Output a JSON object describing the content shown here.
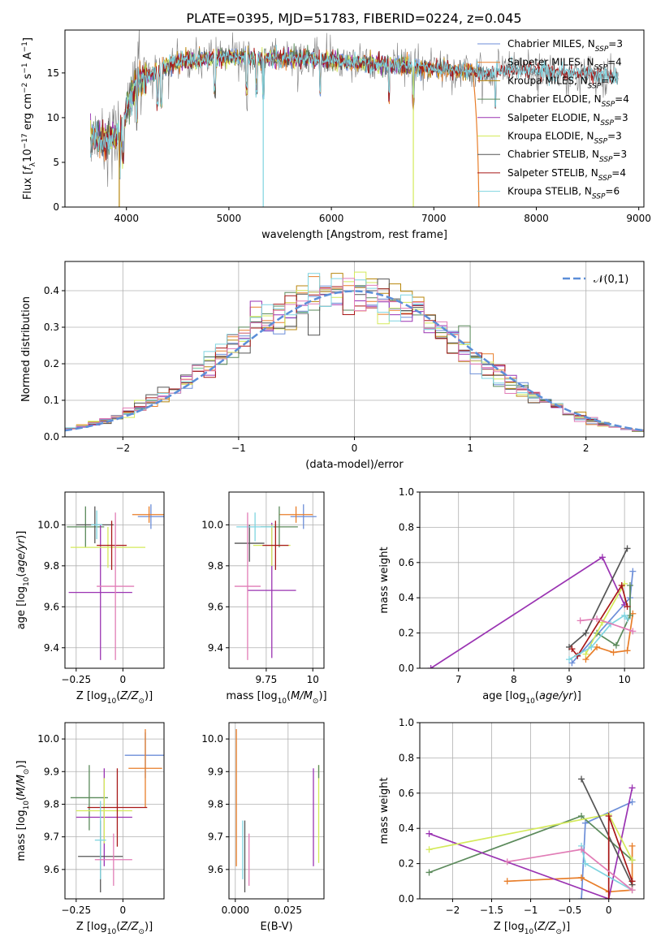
{
  "figure": {
    "title": "PLATE=0395, MJD=51783, FIBERID=0224, z=0.045"
  },
  "colors": {
    "Chabrier MILES": "#6c8ed8",
    "Salpeter MILES": "#e87e2a",
    "Kroupa MILES": "#b8860b",
    "Chabrier ELODIE": "#5b8a5b",
    "Salpeter ELODIE": "#9a33b2",
    "Kroupa ELODIE": "#d4ea5a",
    "Chabrier STELIB": "#555555",
    "Salpeter STELIB": "#a81818",
    "Kroupa STELIB": "#7fd4e0",
    "pink": "#e17cb6",
    "gaussian": "#5b8ed8",
    "data": "#7f7f7f",
    "grid": "#b0b0b0"
  },
  "chart_data": [
    {
      "id": "spectrum",
      "type": "line",
      "xlabel": "wavelength [Angstrom, rest frame]",
      "ylabel": "Flux [f_λ10^-17 erg cm^-2 s^-1 A^-1]",
      "xlim": [
        3400,
        9050
      ],
      "ylim": [
        0,
        19.8
      ],
      "xticks": [
        4000,
        5000,
        6000,
        7000,
        8000,
        9000
      ],
      "yticks": [
        0,
        5,
        10,
        15
      ],
      "grid": false,
      "legend_position": "right",
      "continuum": {
        "x": [
          3650,
          3800,
          3950,
          4000,
          4100,
          4300,
          4500,
          4700,
          5000,
          5300,
          5600,
          6000,
          6400,
          6800,
          7200,
          7500,
          7800,
          8200,
          8600,
          8800
        ],
        "y": [
          8,
          7.5,
          8.5,
          11,
          14,
          15.2,
          16.2,
          16.5,
          16.8,
          16.6,
          16.7,
          16.4,
          16.0,
          15.7,
          15.3,
          15.0,
          15.4,
          15.1,
          14.8,
          14.5
        ]
      },
      "models": [
        {
          "name": "Chabrier MILES",
          "nssp": "3",
          "xmax": 7450
        },
        {
          "name": "Salpeter MILES",
          "nssp": "4",
          "xmax": 7450
        },
        {
          "name": "Kroupa MILES",
          "nssp": "7",
          "xmax": 7450
        },
        {
          "name": "Chabrier ELODIE",
          "nssp": "4",
          "xmax": 6800
        },
        {
          "name": "Salpeter ELODIE",
          "nssp": "3",
          "xmax": 6800
        },
        {
          "name": "Kroupa ELODIE",
          "nssp": "3",
          "xmax": 6800
        },
        {
          "name": "Chabrier STELIB",
          "nssp": "3",
          "xmax": 8800
        },
        {
          "name": "Salpeter STELIB",
          "nssp": "4",
          "xmax": 8800
        },
        {
          "name": "Kroupa STELIB",
          "nssp": "6",
          "xmax": 8800
        }
      ]
    },
    {
      "id": "residuals",
      "type": "histogram",
      "xlabel": "(data-model)/error",
      "ylabel": "Normed distribution",
      "xlim": [
        -2.5,
        2.5
      ],
      "ylim": [
        0,
        0.48
      ],
      "xticks": [
        -2,
        -1,
        0,
        1,
        2
      ],
      "yticks": [
        0.0,
        0.1,
        0.2,
        0.3,
        0.4
      ],
      "grid": true,
      "legend": "𝒩(0,1)",
      "legend_position": "top-right",
      "bin_width": 0.1
    },
    {
      "id": "age_vs_Z",
      "type": "errorbar",
      "xlabel": "Z [log10(Z/Z⊙)]",
      "ylabel": "age  [log10(age/yr)]",
      "xlim": [
        -0.31,
        0.22
      ],
      "ylim": [
        9.3,
        10.16
      ],
      "xticks": [
        -0.25,
        0.0
      ],
      "yticks": [
        9.4,
        9.6,
        9.8,
        10.0
      ],
      "grid": true,
      "points": [
        {
          "c": "Chabrier MILES",
          "x": 0.15,
          "y": 10.04,
          "dx": 0.07,
          "dy": 0.06
        },
        {
          "c": "Salpeter MILES",
          "x": 0.14,
          "y": 10.05,
          "dx": 0.09,
          "dy": 0.04
        },
        {
          "c": "Chabrier ELODIE",
          "x": -0.2,
          "y": 9.99,
          "dx": 0.1,
          "dy": 0.1
        },
        {
          "c": "Salpeter ELODIE",
          "x": -0.12,
          "y": 9.67,
          "dx": 0.17,
          "dy": 0.33
        },
        {
          "c": "Kroupa ELODIE",
          "x": -0.08,
          "y": 9.89,
          "dx": 0.2,
          "dy": 0.1
        },
        {
          "c": "Chabrier STELIB",
          "x": -0.15,
          "y": 10.0,
          "dx": 0.1,
          "dy": 0.09
        },
        {
          "c": "Salpeter STELIB",
          "x": -0.06,
          "y": 9.9,
          "dx": 0.08,
          "dy": 0.12
        },
        {
          "c": "Kroupa STELIB",
          "x": -0.14,
          "y": 10.0,
          "dx": 0.03,
          "dy": 0.07
        },
        {
          "c": "pink",
          "x": -0.04,
          "y": 9.7,
          "dx": 0.1,
          "dy": 0.36
        }
      ]
    },
    {
      "id": "age_vs_mass",
      "type": "errorbar",
      "xlabel": "mass [log10(M/M⊙)]",
      "ylabel": "",
      "xlim": [
        9.55,
        10.06
      ],
      "ylim": [
        9.3,
        10.16
      ],
      "xticks": [
        9.75,
        10.0
      ],
      "yticks": [
        9.4,
        9.6,
        9.8,
        10.0
      ],
      "grid": true,
      "points": [
        {
          "c": "Chabrier MILES",
          "x": 9.95,
          "y": 10.04,
          "dx": 0.07,
          "dy": 0.06
        },
        {
          "c": "Salpeter MILES",
          "x": 9.91,
          "y": 10.05,
          "dx": 0.09,
          "dy": 0.04
        },
        {
          "c": "Chabrier ELODIE",
          "x": 9.82,
          "y": 9.99,
          "dx": 0.1,
          "dy": 0.1
        },
        {
          "c": "Salpeter ELODIE",
          "x": 9.78,
          "y": 9.68,
          "dx": 0.13,
          "dy": 0.33
        },
        {
          "c": "Kroupa ELODIE",
          "x": 9.78,
          "y": 9.9,
          "dx": 0.1,
          "dy": 0.1
        },
        {
          "c": "Chabrier STELIB",
          "x": 9.66,
          "y": 9.91,
          "dx": 0.08,
          "dy": 0.09
        },
        {
          "c": "Salpeter STELIB",
          "x": 9.8,
          "y": 9.9,
          "dx": 0.07,
          "dy": 0.12
        },
        {
          "c": "Kroupa STELIB",
          "x": 9.69,
          "y": 9.99,
          "dx": 0.1,
          "dy": 0.07
        },
        {
          "c": "pink",
          "x": 9.65,
          "y": 9.7,
          "dx": 0.07,
          "dy": 0.36
        }
      ]
    },
    {
      "id": "weight_vs_age",
      "type": "line",
      "xlabel": "age  [log10(age/yr)]",
      "ylabel": "mass weight",
      "xlim": [
        6.3,
        10.35
      ],
      "ylim": [
        0,
        1.0
      ],
      "xticks": [
        7,
        8,
        9,
        10
      ],
      "yticks": [
        0.0,
        0.2,
        0.4,
        0.6,
        0.8,
        1.0
      ],
      "grid": true,
      "series": [
        {
          "c": "Chabrier MILES",
          "x": [
            9.05,
            10.1,
            10.15
          ],
          "y": [
            0.03,
            0.4,
            0.55
          ]
        },
        {
          "c": "Salpeter MILES",
          "x": [
            9.3,
            9.5,
            9.8,
            10.05,
            10.15
          ],
          "y": [
            0.05,
            0.12,
            0.09,
            0.1,
            0.31
          ]
        },
        {
          "c": "Chabrier ELODIE",
          "x": [
            9.5,
            9.85,
            10.1,
            10.1
          ],
          "y": [
            0.2,
            0.13,
            0.3,
            0.47
          ]
        },
        {
          "c": "Salpeter ELODIE",
          "x": [
            6.5,
            9.6,
            10.0
          ],
          "y": [
            0.0,
            0.63,
            0.36
          ]
        },
        {
          "c": "Kroupa ELODIE",
          "x": [
            9.3,
            9.6,
            10.0
          ],
          "y": [
            0.08,
            0.26,
            0.48
          ]
        },
        {
          "c": "Chabrier STELIB",
          "x": [
            9.0,
            9.3,
            10.05
          ],
          "y": [
            0.12,
            0.2,
            0.68
          ]
        },
        {
          "c": "Salpeter STELIB",
          "x": [
            9.05,
            9.15,
            9.95,
            10.05
          ],
          "y": [
            0.11,
            0.07,
            0.47,
            0.35
          ]
        },
        {
          "c": "Kroupa STELIB",
          "x": [
            9.0,
            9.4,
            9.75,
            10.0,
            10.05
          ],
          "y": [
            0.05,
            0.12,
            0.25,
            0.3,
            0.28
          ]
        },
        {
          "c": "pink",
          "x": [
            9.2,
            9.5,
            10.15
          ],
          "y": [
            0.27,
            0.28,
            0.21
          ]
        }
      ]
    },
    {
      "id": "mass_vs_Z",
      "type": "errorbar",
      "xlabel": "Z [log10(Z/Z⊙)]",
      "ylabel": "mass [log10(M/M⊙)]",
      "xlim": [
        -0.31,
        0.22
      ],
      "ylim": [
        9.51,
        10.05
      ],
      "xticks": [
        -0.25,
        0.0
      ],
      "yticks": [
        9.6,
        9.7,
        9.8,
        9.9,
        10.0
      ],
      "grid": true,
      "points": [
        {
          "c": "Chabrier MILES",
          "x": 0.12,
          "y": 9.95,
          "dx": 0.11,
          "dy": 0.07
        },
        {
          "c": "Salpeter MILES",
          "x": 0.12,
          "y": 9.91,
          "dx": 0.09,
          "dy": 0.12
        },
        {
          "c": "Chabrier ELODIE",
          "x": -0.18,
          "y": 9.82,
          "dx": 0.1,
          "dy": 0.1
        },
        {
          "c": "Salpeter ELODIE",
          "x": -0.1,
          "y": 9.76,
          "dx": 0.15,
          "dy": 0.15
        },
        {
          "c": "Kroupa ELODIE",
          "x": -0.1,
          "y": 9.78,
          "dx": 0.15,
          "dy": 0.1
        },
        {
          "c": "Chabrier STELIB",
          "x": -0.12,
          "y": 9.64,
          "dx": 0.12,
          "dy": 0.11
        },
        {
          "c": "Salpeter STELIB",
          "x": -0.03,
          "y": 9.79,
          "dx": 0.16,
          "dy": 0.12
        },
        {
          "c": "Kroupa STELIB",
          "x": -0.12,
          "y": 9.69,
          "dx": 0.03,
          "dy": 0.12
        },
        {
          "c": "pink",
          "x": -0.05,
          "y": 9.63,
          "dx": 0.1,
          "dy": 0.08
        }
      ]
    },
    {
      "id": "mass_vs_EBV",
      "type": "errorbar",
      "xlabel": "E(B-V)",
      "ylabel": "",
      "xlim": [
        -0.003,
        0.042
      ],
      "ylim": [
        9.51,
        10.05
      ],
      "xticks": [
        0.0,
        0.025
      ],
      "xticklabels": [
        "0.000",
        "0.025"
      ],
      "yticks": [
        9.6,
        9.7,
        9.8,
        9.9,
        10.0
      ],
      "grid": true,
      "points": [
        {
          "c": "Salpeter MILES",
          "x": 0.0005,
          "y": 9.82,
          "dx": 0,
          "dy": 0.21
        },
        {
          "c": "Chabrier STELIB",
          "x": 0.0045,
          "y": 9.64,
          "dx": 0,
          "dy": 0.11
        },
        {
          "c": "Kroupa STELIB",
          "x": 0.0035,
          "y": 9.66,
          "dx": 0,
          "dy": 0.09
        },
        {
          "c": "pink",
          "x": 0.0065,
          "y": 9.63,
          "dx": 0,
          "dy": 0.08
        },
        {
          "c": "Salpeter ELODIE",
          "x": 0.037,
          "y": 9.76,
          "dx": 0,
          "dy": 0.15
        },
        {
          "c": "Kroupa ELODIE",
          "x": 0.0395,
          "y": 9.77,
          "dx": 0,
          "dy": 0.15
        },
        {
          "c": "Chabrier ELODIE",
          "x": 0.0395,
          "y": 9.9,
          "dx": 0,
          "dy": 0.02
        }
      ]
    },
    {
      "id": "weight_vs_Z",
      "type": "line",
      "xlabel": "Z [log10(Z/Z⊙)]",
      "ylabel": "mass weight",
      "xlim": [
        -2.42,
        0.45
      ],
      "ylim": [
        0,
        1.0
      ],
      "xticks": [
        -2.0,
        -1.5,
        -1.0,
        -0.5,
        0.0
      ],
      "yticks": [
        0.0,
        0.2,
        0.4,
        0.6,
        0.8,
        1.0
      ],
      "grid": true,
      "series": [
        {
          "c": "Chabrier MILES",
          "x": [
            -0.35,
            -0.3,
            0.3
          ],
          "y": [
            0.0,
            0.43,
            0.55
          ]
        },
        {
          "c": "Salpeter MILES",
          "x": [
            -1.3,
            -0.35,
            0.0,
            0.3,
            0.3
          ],
          "y": [
            0.1,
            0.12,
            0.04,
            0.05,
            0.3
          ]
        },
        {
          "c": "Chabrier ELODIE",
          "x": [
            -2.3,
            -0.35,
            0.3
          ],
          "y": [
            0.15,
            0.47,
            0.22
          ]
        },
        {
          "c": "Salpeter ELODIE",
          "x": [
            -2.3,
            0.0,
            0.3
          ],
          "y": [
            0.37,
            0.0,
            0.63
          ]
        },
        {
          "c": "Kroupa ELODIE",
          "x": [
            -2.3,
            0.0,
            0.3
          ],
          "y": [
            0.28,
            0.48,
            0.22
          ]
        },
        {
          "c": "Chabrier STELIB",
          "x": [
            -0.35,
            0.3
          ],
          "y": [
            0.68,
            0.08
          ]
        },
        {
          "c": "Salpeter STELIB",
          "x": [
            0.0,
            0.0,
            0.3
          ],
          "y": [
            0.0,
            0.47,
            0.1
          ]
        },
        {
          "c": "Kroupa STELIB",
          "x": [
            -0.35,
            -0.3,
            0.3
          ],
          "y": [
            0.3,
            0.2,
            0.05
          ]
        },
        {
          "c": "pink",
          "x": [
            -1.3,
            -0.35,
            0.3
          ],
          "y": [
            0.21,
            0.28,
            0.05
          ]
        }
      ]
    }
  ]
}
